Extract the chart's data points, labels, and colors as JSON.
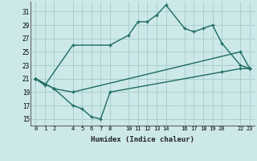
{
  "bg_color": "#cce8e8",
  "grid_color": "#aacfcf",
  "line_color": "#1e6b60",
  "line_width": 1.0,
  "marker_size": 2.5,
  "xlabel": "Humidex (Indice chaleur)",
  "xlim": [
    -0.5,
    23.5
  ],
  "ylim": [
    14.0,
    32.5
  ],
  "xticks": [
    0,
    1,
    2,
    4,
    5,
    6,
    7,
    8,
    10,
    11,
    12,
    13,
    14,
    16,
    17,
    18,
    19,
    20,
    22,
    23
  ],
  "yticks": [
    15,
    17,
    19,
    21,
    23,
    25,
    27,
    29,
    31
  ],
  "line1_x": [
    0,
    1,
    4,
    8,
    10,
    11,
    12,
    13,
    14,
    16,
    17,
    18,
    19,
    20,
    22,
    23
  ],
  "line1_y": [
    21,
    20,
    26,
    26,
    27.5,
    29.5,
    29.5,
    30.5,
    32,
    28.5,
    28.0,
    28.5,
    29,
    26.3,
    23,
    22.5
  ],
  "line2_x": [
    0,
    2,
    4,
    22,
    23
  ],
  "line2_y": [
    21,
    19.5,
    19,
    25,
    22.5
  ],
  "line3_x": [
    0,
    2,
    4,
    5,
    6,
    7,
    8,
    20,
    22,
    23
  ],
  "line3_y": [
    21,
    19.5,
    17,
    16.5,
    15.3,
    15,
    19,
    22.0,
    22.5,
    22.5
  ]
}
